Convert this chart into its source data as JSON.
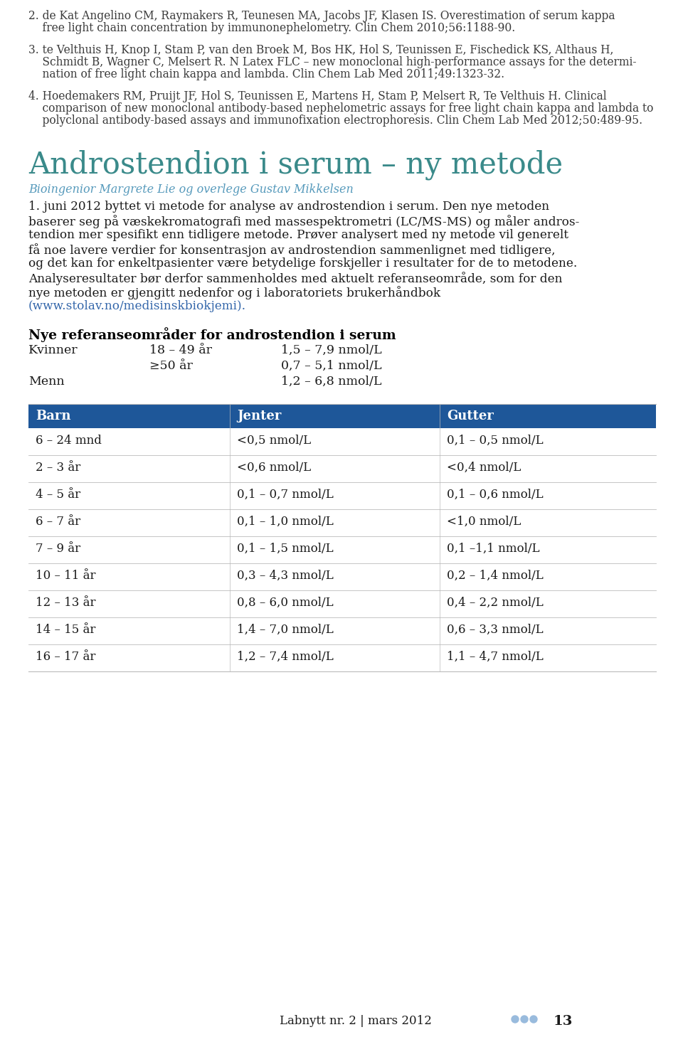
{
  "bg_color": "#ffffff",
  "text_color": "#1a1a1a",
  "ref_text_color": "#333333",
  "blue_header_color": "#1e5799",
  "teal_title_color": "#3a8a8a",
  "subtitle_color": "#5599bb",
  "link_color": "#3366aa",
  "bold_heading_color": "#000000",
  "table_line_color": "#bbbbbb",
  "ref2": [
    "2. de Kat Angelino CM, Raymakers R, Teunesen MA, Jacobs JF, Klasen IS. Overestimation of serum kappa",
    "    free light chain concentration by immunonephelometry. Clin Chem 2010;56:1188-90."
  ],
  "ref3": [
    "3. te Velthuis H, Knop I, Stam P, van den Broek M, Bos HK, Hol S, Teunissen E, Fischedick KS, Althaus H,",
    "    Schmidt B, Wagner C, Melsert R. N Latex FLC – new monoclonal high-performance assays for the determi-",
    "    nation of free light chain kappa and lambda. Clin Chem Lab Med 2011;49:1323-32."
  ],
  "ref4": [
    "4. Hoedemakers RM, Pruijt JF, Hol S, Teunissen E, Martens H, Stam P, Melsert R, Te Velthuis H. Clinical",
    "    comparison of new monoclonal antibody-based nephelometric assays for free light chain kappa and lambda to",
    "    polyclonal antibody-based assays and immunofixation electrophoresis. Clin Chem Lab Med 2012;50:489-95."
  ],
  "section_title": "Androstendion i serum – ny metode",
  "section_subtitle": "Bioingenior Margrete Lie og overlege Gustav Mikkelsen",
  "body_lines": [
    "1. juni 2012 byttet vi metode for analyse av androstendion i serum. Den nye metoden",
    "baserer seg på væskekromatografi med massespektrometri (LC/MS-MS) og måler andros-",
    "tendion mer spesifikt enn tidligere metode. Prøver analysert med ny metode vil generelt",
    "få noe lavere verdier for konsentrasjon av androstendion sammenlignet med tidligere,",
    "og det kan for enkeltpasienter være betydelige forskjeller i resultater for de to metodene.",
    "Analyseresultater bør derfor sammenholdes med aktuelt referanseområde, som for den",
    "nye metoden er gjengitt nedenfor og i laboratoriets brukerhåndbok"
  ],
  "body_link_line": "(www.stolav.no/medisinskbiokjemi).",
  "ref_heading": "Nye referanseområder for androstendion i serum",
  "ref_rows": [
    [
      "Kvinner",
      "18 – 49 år",
      "1,5 – 7,9 nmol/L"
    ],
    [
      "",
      "≥50 år",
      "0,7 – 5,1 nmol/L"
    ],
    [
      "Menn",
      "",
      "1,2 – 6,8 nmol/L"
    ]
  ],
  "table_headers": [
    "Barn",
    "Jenter",
    "Gutter"
  ],
  "table_rows": [
    [
      "6 – 24 mnd",
      "<0,5 nmol/L",
      "0,1 – 0,5 nmol/L"
    ],
    [
      "2 – 3 år",
      "<0,6 nmol/L",
      "<0,4 nmol/L"
    ],
    [
      "4 – 5 år",
      "0,1 – 0,7 nmol/L",
      "0,1 – 0,6 nmol/L"
    ],
    [
      "6 – 7 år",
      "0,1 – 1,0 nmol/L",
      "<1,0 nmol/L"
    ],
    [
      "7 – 9 år",
      "0,1 – 1,5 nmol/L",
      "0,1 –1,1 nmol/L"
    ],
    [
      "10 – 11 år",
      "0,3 – 4,3 nmol/L",
      "0,2 – 1,4 nmol/L"
    ],
    [
      "12 – 13 år",
      "0,8 – 6,0 nmol/L",
      "0,4 – 2,2 nmol/L"
    ],
    [
      "14 – 15 år",
      "1,4 – 7,0 nmol/L",
      "0,6 – 3,3 nmol/L"
    ],
    [
      "16 – 17 år",
      "1,2 – 7,4 nmol/L",
      "1,1 – 4,7 nmol/L"
    ]
  ],
  "footer_text": "Labnytt nr. 2 | mars 2012",
  "footer_page": "13",
  "footer_dots_color": "#99bbdd"
}
